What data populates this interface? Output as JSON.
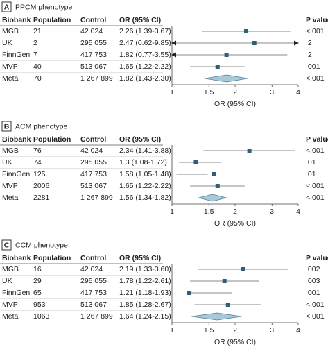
{
  "chart_data": [
    {
      "type": "forest",
      "panel": "A",
      "title": "PPCM phenotype",
      "columns": [
        "Biobank",
        "Population",
        "Control",
        "OR (95% CI)",
        "P value"
      ],
      "categories": [
        "MGB",
        "UK",
        "FinnGen",
        "MVP",
        "Meta"
      ],
      "population": [
        21,
        2,
        7,
        40,
        70
      ],
      "control": [
        "42 024",
        "295 055",
        "417 753",
        "513 067",
        "1 267 899"
      ],
      "values": [
        2.26,
        2.47,
        1.82,
        1.65,
        1.82
      ],
      "lower": [
        1.39,
        0.62,
        0.77,
        1.22,
        1.43
      ],
      "upper": [
        3.67,
        9.85,
        3.55,
        2.22,
        2.3
      ],
      "value_labels": [
        "2.26 (1.39-3.67)",
        "2.47 (0.62-9.85)",
        "1.82 (0.77-3.55)",
        "1.65 (1.22-2.22)",
        "1.82 (1.43-2.30)"
      ],
      "p_values": [
        "<.001",
        ".2",
        ".2",
        ".001",
        "<.001"
      ],
      "xlabel": "OR (95% CI)",
      "xscale": "log",
      "xlim": [
        1,
        4
      ],
      "xticks": [
        1,
        1.5,
        2,
        3,
        4
      ],
      "color": "#2f5f78",
      "summary_color": "#a8cad8"
    },
    {
      "type": "forest",
      "panel": "B",
      "title": "ACM phenotype",
      "columns": [
        "Biobank",
        "Population",
        "Control",
        "OR (95% CI)",
        "P value"
      ],
      "categories": [
        "MGB",
        "UK",
        "FinnGen",
        "MVP",
        "Meta"
      ],
      "population": [
        76,
        74,
        125,
        2006,
        2281
      ],
      "control": [
        "42 024",
        "295 055",
        "417 753",
        "513 067",
        "1 267 899"
      ],
      "values": [
        2.34,
        1.3,
        1.58,
        1.65,
        1.56
      ],
      "lower": [
        1.41,
        1.08,
        1.05,
        1.22,
        1.34
      ],
      "upper": [
        3.88,
        1.72,
        1.48,
        2.22,
        1.82
      ],
      "value_labels": [
        "2.34 (1.41-3.88)",
        "1.3 (1.08-1.72)",
        "1.58 (1.05-1.48)",
        "1.65 (1.22-2.22)",
        "1.56 (1.34-1.82)"
      ],
      "p_values": [
        "<.001",
        ".01",
        ".01",
        "<.001",
        "<.001"
      ],
      "xlabel": "OR (95% CI)",
      "xscale": "log",
      "xlim": [
        1,
        4
      ],
      "xticks": [
        1,
        1.5,
        2,
        3,
        4
      ],
      "color": "#2f5f78",
      "summary_color": "#a8cad8"
    },
    {
      "type": "forest",
      "panel": "C",
      "title": "CCM phenotype",
      "columns": [
        "Biobank",
        "Population",
        "Control",
        "OR (95% CI)",
        "P value"
      ],
      "categories": [
        "MGB",
        "UK",
        "FinnGen",
        "MVP",
        "Meta"
      ],
      "population": [
        16,
        29,
        65,
        953,
        1063
      ],
      "control": [
        "42 024",
        "295 055",
        "417 753",
        "513 067",
        "1 267 899"
      ],
      "values": [
        2.19,
        1.78,
        1.21,
        1.85,
        1.64
      ],
      "lower": [
        1.33,
        1.22,
        1.18,
        1.28,
        1.24
      ],
      "upper": [
        3.6,
        2.61,
        1.93,
        2.67,
        2.15
      ],
      "value_labels": [
        "2.19 (1.33-3.60)",
        "1.78 (1.22-2.61)",
        "1.21 (1.18-1.93)",
        "1.85 (1.28-2.67)",
        "1.64 (1.24-2.15)"
      ],
      "p_values": [
        ".002",
        ".003",
        ".001",
        "<.001",
        "<.001"
      ],
      "xlabel": "OR (95% CI)",
      "xscale": "log",
      "xlim": [
        1,
        4
      ],
      "xticks": [
        1,
        1.5,
        2,
        3,
        4
      ],
      "color": "#2f5f78",
      "summary_color": "#a8cad8"
    }
  ]
}
